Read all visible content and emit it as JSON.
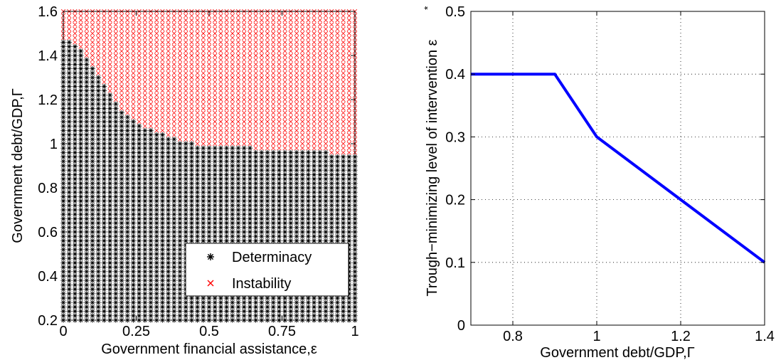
{
  "chart_data": [
    {
      "type": "scatter",
      "xlabel": "Government financial assistance,ε",
      "ylabel": "Government debt/GDP,Γ",
      "xlim": [
        0,
        1
      ],
      "ylim": [
        0.2,
        1.6
      ],
      "xticks": [
        "0",
        "0.25",
        "0.5",
        "0.75",
        "1"
      ],
      "yticks": [
        "0.2",
        "0.4",
        "0.6",
        "0.8",
        "1",
        "1.2",
        "1.4",
        "1.6"
      ],
      "grid": false,
      "legend_position": "bottom-right",
      "grid_step_x": 0.02,
      "grid_step_y": 0.02,
      "series": [
        {
          "name": "Determinacy",
          "marker": "asterisk",
          "color": "#000000",
          "region": "below boundary"
        },
        {
          "name": "Instability",
          "marker": "x",
          "color": "#ff0000",
          "region": "above boundary"
        }
      ],
      "boundary": {
        "x": [
          0,
          0.02,
          0.04,
          0.06,
          0.08,
          0.1,
          0.12,
          0.14,
          0.16,
          0.18,
          0.2,
          0.22,
          0.24,
          0.26,
          0.28,
          0.3,
          0.32,
          0.34,
          0.36,
          0.38,
          0.4,
          0.45,
          0.5,
          0.55,
          0.6,
          0.65,
          0.7,
          0.75,
          0.8,
          0.85,
          0.9,
          0.95,
          1.0
        ],
        "y": [
          1.46,
          1.46,
          1.44,
          1.42,
          1.38,
          1.34,
          1.3,
          1.26,
          1.22,
          1.18,
          1.14,
          1.12,
          1.1,
          1.08,
          1.06,
          1.06,
          1.04,
          1.04,
          1.02,
          1.02,
          1.0,
          1.0,
          0.98,
          0.98,
          0.98,
          0.98,
          0.96,
          0.96,
          0.96,
          0.96,
          0.96,
          0.94,
          0.94
        ]
      }
    },
    {
      "type": "line",
      "xlabel": "Government debt/GDP,Γ",
      "ylabel": "Trough−minimizing level of intervention ε",
      "ylabel_superscript": "*",
      "xlim": [
        0.7,
        1.4
      ],
      "ylim": [
        0,
        0.5
      ],
      "xticks": [
        "0.8",
        "1",
        "1.2",
        "1.4"
      ],
      "yticks": [
        "0",
        "0.1",
        "0.2",
        "0.3",
        "0.4",
        "0.5"
      ],
      "grid": true,
      "series": [
        {
          "color": "#0000ff",
          "x": [
            0.7,
            0.9,
            1.0,
            1.2,
            1.4
          ],
          "y": [
            0.4,
            0.4,
            0.3,
            0.2,
            0.1
          ]
        }
      ]
    }
  ]
}
